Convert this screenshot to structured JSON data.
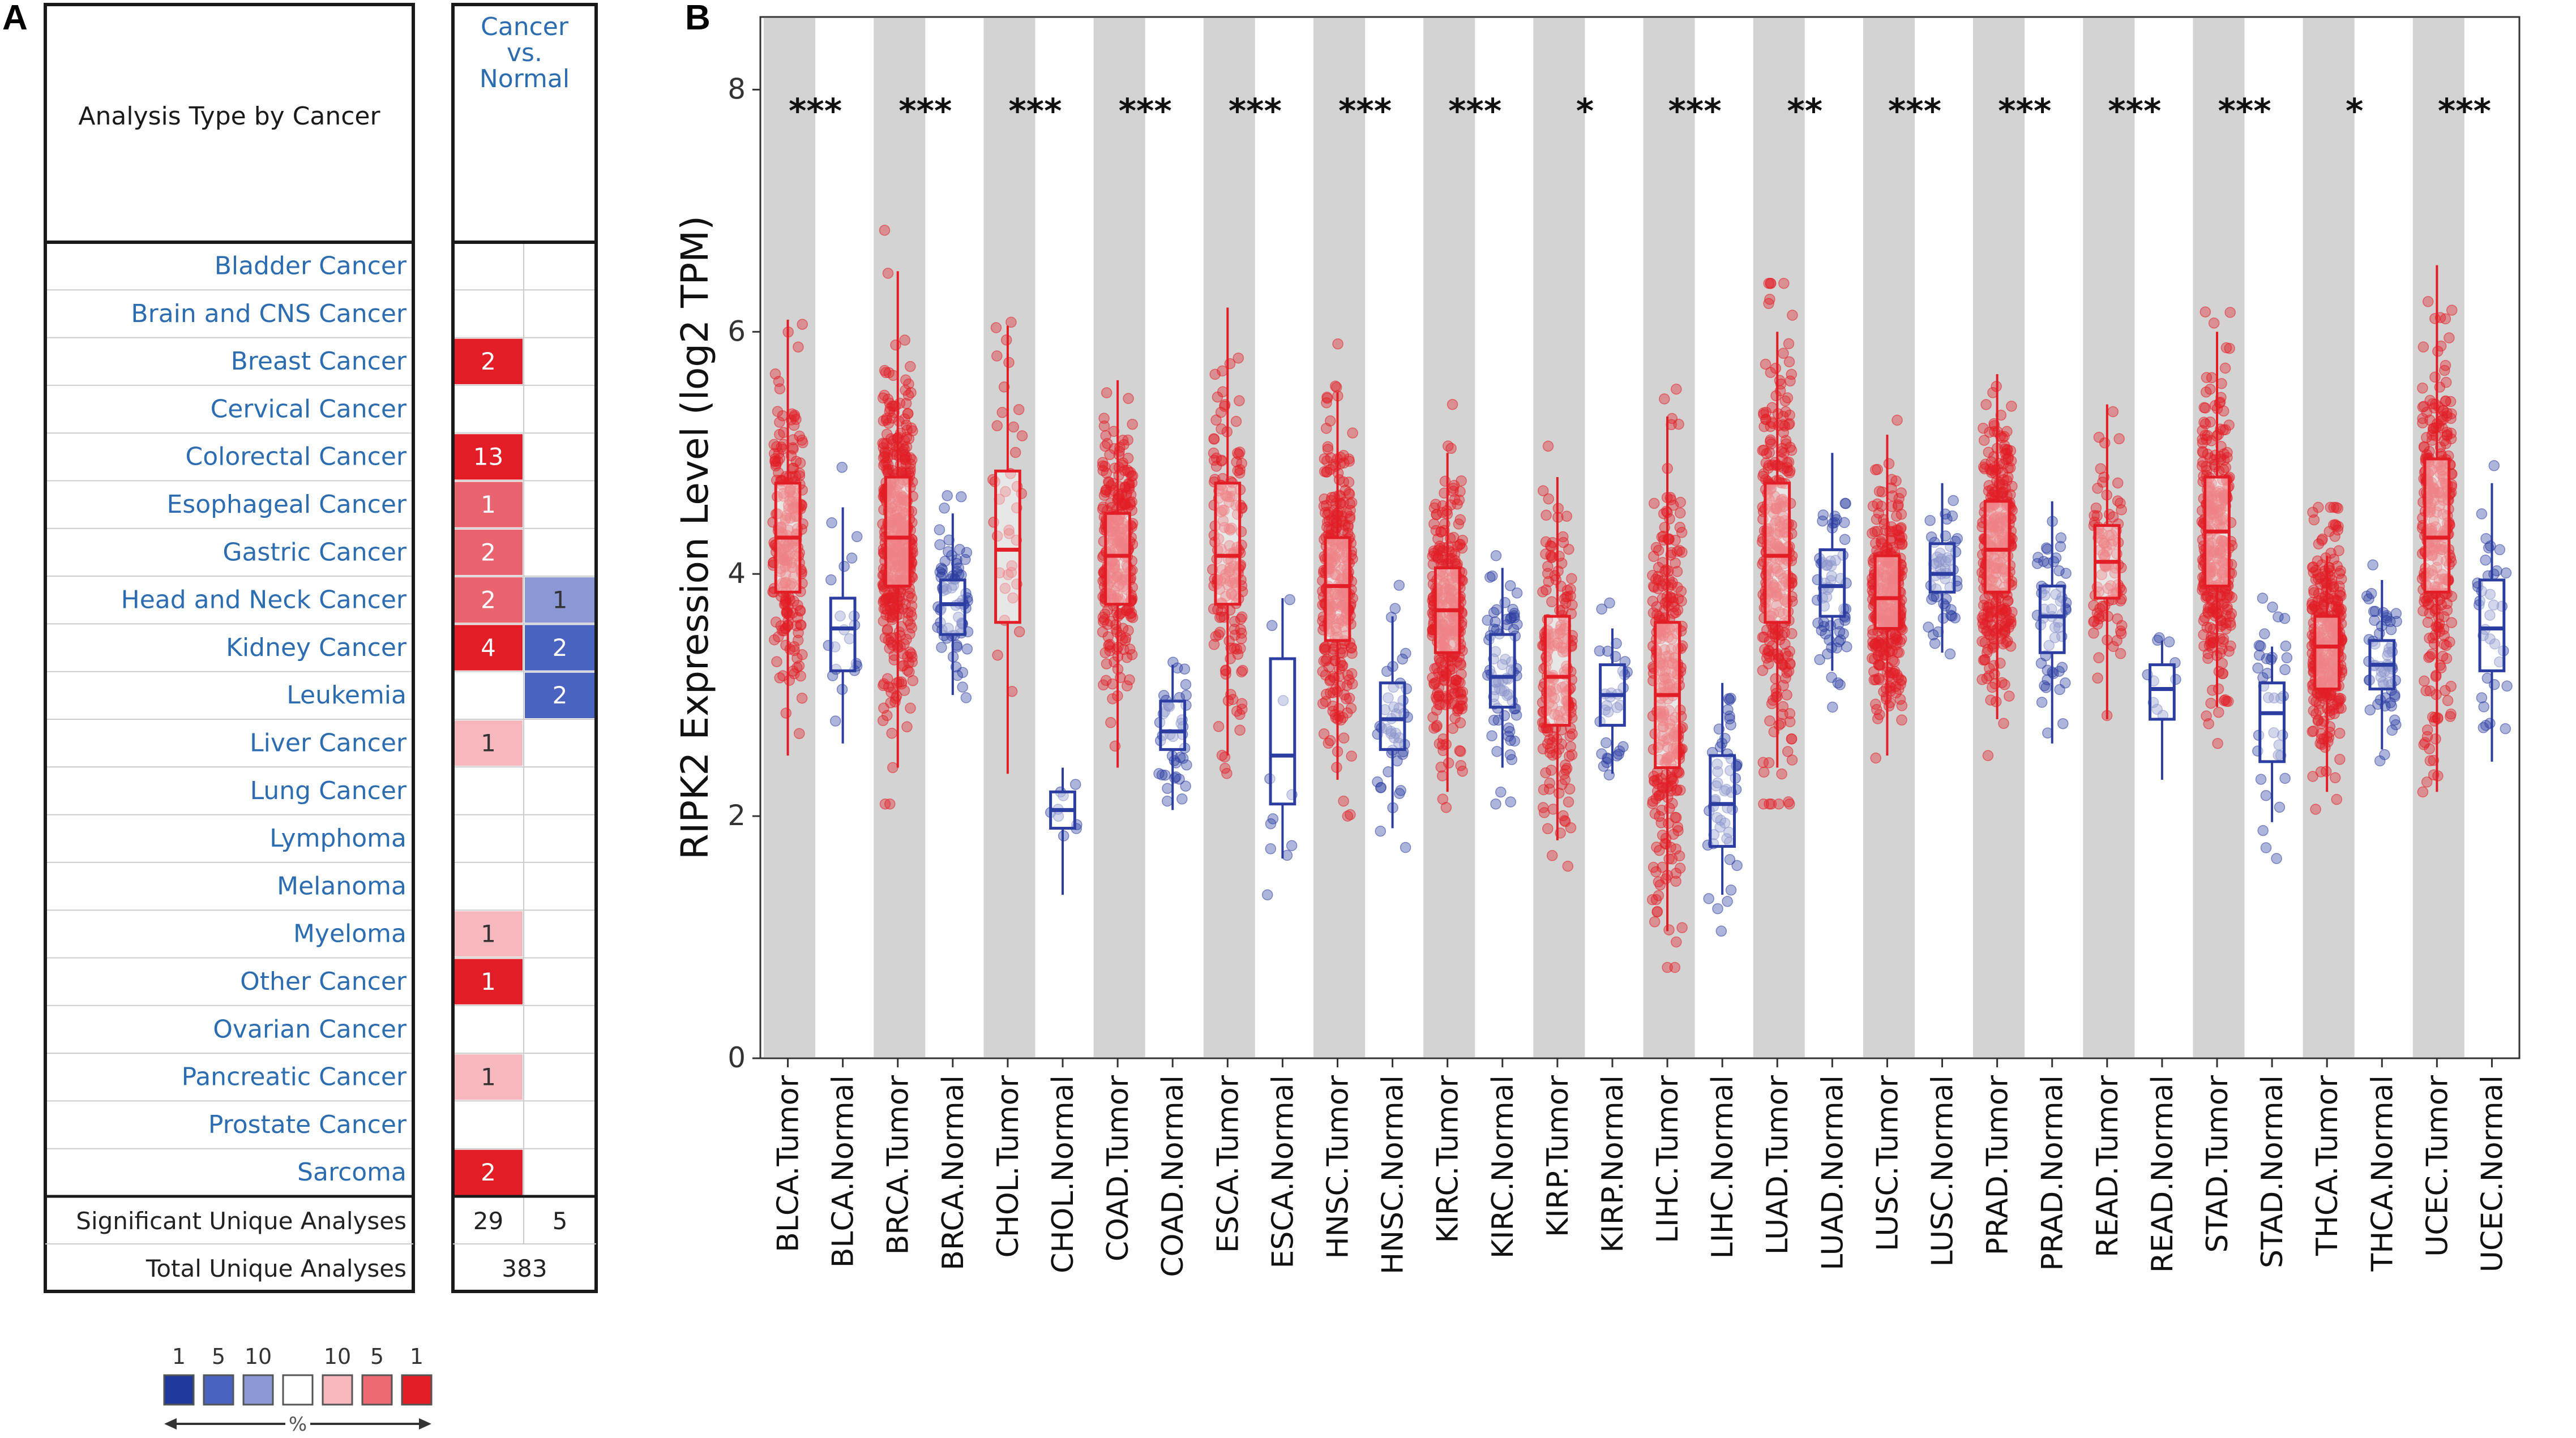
{
  "panel_a": {
    "label": "A",
    "header_left": "Analysis Type by Cancer",
    "header_right": [
      "Cancer",
      "vs.",
      "Normal"
    ],
    "rows": [
      {
        "name": "Bladder Cancer",
        "up": "",
        "down": "",
        "up_level": 0,
        "down_level": 0
      },
      {
        "name": "Brain and CNS Cancer",
        "up": "",
        "down": "",
        "up_level": 0,
        "down_level": 0
      },
      {
        "name": "Breast Cancer",
        "up": "2",
        "down": "",
        "up_level": 3,
        "down_level": 0
      },
      {
        "name": "Cervical Cancer",
        "up": "",
        "down": "",
        "up_level": 0,
        "down_level": 0
      },
      {
        "name": "Colorectal Cancer",
        "up": "13",
        "down": "",
        "up_level": 3,
        "down_level": 0
      },
      {
        "name": "Esophageal Cancer",
        "up": "1",
        "down": "",
        "up_level": 2,
        "down_level": 0
      },
      {
        "name": "Gastric Cancer",
        "up": "2",
        "down": "",
        "up_level": 2,
        "down_level": 0
      },
      {
        "name": "Head and Neck Cancer",
        "up": "2",
        "down": "1",
        "up_level": 2,
        "down_level": 1
      },
      {
        "name": "Kidney Cancer",
        "up": "4",
        "down": "2",
        "up_level": 3,
        "down_level": 2
      },
      {
        "name": "Leukemia",
        "up": "",
        "down": "2",
        "up_level": 0,
        "down_level": 2
      },
      {
        "name": "Liver Cancer",
        "up": "1",
        "down": "",
        "up_level": 1,
        "down_level": 0
      },
      {
        "name": "Lung Cancer",
        "up": "",
        "down": "",
        "up_level": 0,
        "down_level": 0
      },
      {
        "name": "Lymphoma",
        "up": "",
        "down": "",
        "up_level": 0,
        "down_level": 0
      },
      {
        "name": "Melanoma",
        "up": "",
        "down": "",
        "up_level": 0,
        "down_level": 0
      },
      {
        "name": "Myeloma",
        "up": "1",
        "down": "",
        "up_level": 1,
        "down_level": 0
      },
      {
        "name": "Other Cancer",
        "up": "1",
        "down": "",
        "up_level": 3,
        "down_level": 0
      },
      {
        "name": "Ovarian Cancer",
        "up": "",
        "down": "",
        "up_level": 0,
        "down_level": 0
      },
      {
        "name": "Pancreatic Cancer",
        "up": "1",
        "down": "",
        "up_level": 1,
        "down_level": 0
      },
      {
        "name": "Prostate Cancer",
        "up": "",
        "down": "",
        "up_level": 0,
        "down_level": 0
      },
      {
        "name": "Sarcoma",
        "up": "2",
        "down": "",
        "up_level": 3,
        "down_level": 0
      }
    ],
    "sig_label": "Significant Unique Analyses",
    "sig_up": "29",
    "sig_down": "5",
    "total_label": "Total Unique Analyses",
    "total": "383",
    "legend": {
      "numbers": [
        "1",
        "5",
        "10",
        "10",
        "5",
        "1"
      ],
      "percent": "%",
      "colors": [
        "#1f3a9a",
        "#4a62c0",
        "#8c97d6",
        "#ffffff",
        "#f6b8bd",
        "#ec6a72",
        "#e31d25"
      ]
    },
    "colors": {
      "up": [
        "#ffffff",
        "#f6b8bd",
        "#ea6470",
        "#e31d25"
      ],
      "down": [
        "#ffffff",
        "#8c97d6",
        "#4a62c0",
        "#1f3a9a"
      ],
      "link": "#2c6cb0"
    }
  },
  "panel_b": {
    "label": "B",
    "colors": {
      "tumor": "#e31d25",
      "normal": "#2b3da0",
      "band": "#d3d3d3"
    }
  },
  "chart_data": {
    "type": "box",
    "ylabel": "RIPK2 Expression Level (log2 TPM)",
    "ylim": [
      0,
      8.6
    ],
    "yticks": [
      0,
      2,
      4,
      6,
      8
    ],
    "cancers": [
      "BLCA",
      "BRCA",
      "CHOL",
      "COAD",
      "ESCA",
      "HNSC",
      "KIRC",
      "KIRP",
      "LIHC",
      "LUAD",
      "LUSC",
      "PRAD",
      "READ",
      "STAD",
      "THCA",
      "UCEC"
    ],
    "significance": [
      "***",
      "***",
      "***",
      "***",
      "***",
      "***",
      "***",
      "*",
      "***",
      "**",
      "***",
      "***",
      "***",
      "***",
      "*",
      "***"
    ],
    "groups": [
      {
        "label": "BLCA.Tumor",
        "type": "tumor",
        "q1": 3.85,
        "median": 4.3,
        "q3": 4.75,
        "wlo": 2.5,
        "whi": 6.1,
        "n": 220
      },
      {
        "label": "BLCA.Normal",
        "type": "normal",
        "q1": 3.2,
        "median": 3.55,
        "q3": 3.8,
        "wlo": 2.6,
        "whi": 4.55,
        "n": 20
      },
      {
        "label": "BRCA.Tumor",
        "type": "tumor",
        "q1": 3.9,
        "median": 4.3,
        "q3": 4.8,
        "wlo": 2.4,
        "whi": 6.5,
        "n": 420
      },
      {
        "label": "BRCA.Normal",
        "type": "normal",
        "q1": 3.5,
        "median": 3.75,
        "q3": 3.95,
        "wlo": 3.0,
        "whi": 4.5,
        "n": 70
      },
      {
        "label": "CHOL.Tumor",
        "type": "tumor",
        "q1": 3.6,
        "median": 4.2,
        "q3": 4.85,
        "wlo": 2.35,
        "whi": 6.05,
        "n": 36
      },
      {
        "label": "CHOL.Normal",
        "type": "normal",
        "q1": 1.9,
        "median": 2.05,
        "q3": 2.2,
        "wlo": 1.35,
        "whi": 2.4,
        "n": 9
      },
      {
        "label": "COAD.Tumor",
        "type": "tumor",
        "q1": 3.75,
        "median": 4.15,
        "q3": 4.5,
        "wlo": 2.4,
        "whi": 5.6,
        "n": 280
      },
      {
        "label": "COAD.Normal",
        "type": "normal",
        "q1": 2.55,
        "median": 2.7,
        "q3": 2.95,
        "wlo": 2.05,
        "whi": 3.25,
        "n": 40
      },
      {
        "label": "ESCA.Tumor",
        "type": "tumor",
        "q1": 3.75,
        "median": 4.15,
        "q3": 4.75,
        "wlo": 2.5,
        "whi": 6.2,
        "n": 160
      },
      {
        "label": "ESCA.Normal",
        "type": "normal",
        "q1": 2.1,
        "median": 2.5,
        "q3": 3.3,
        "wlo": 1.65,
        "whi": 3.8,
        "n": 11
      },
      {
        "label": "HNSC.Tumor",
        "type": "tumor",
        "q1": 3.45,
        "median": 3.9,
        "q3": 4.3,
        "wlo": 2.3,
        "whi": 5.5,
        "n": 300
      },
      {
        "label": "HNSC.Normal",
        "type": "normal",
        "q1": 2.55,
        "median": 2.8,
        "q3": 3.1,
        "wlo": 1.9,
        "whi": 3.65,
        "n": 44
      },
      {
        "label": "KIRC.Tumor",
        "type": "tumor",
        "q1": 3.35,
        "median": 3.7,
        "q3": 4.05,
        "wlo": 2.2,
        "whi": 5.0,
        "n": 300
      },
      {
        "label": "KIRC.Normal",
        "type": "normal",
        "q1": 2.9,
        "median": 3.15,
        "q3": 3.5,
        "wlo": 2.4,
        "whi": 4.05,
        "n": 72
      },
      {
        "label": "KIRP.Tumor",
        "type": "tumor",
        "q1": 2.75,
        "median": 3.15,
        "q3": 3.65,
        "wlo": 1.8,
        "whi": 4.8,
        "n": 190
      },
      {
        "label": "KIRP.Normal",
        "type": "normal",
        "q1": 2.75,
        "median": 3.0,
        "q3": 3.25,
        "wlo": 2.35,
        "whi": 3.55,
        "n": 32
      },
      {
        "label": "LIHC.Tumor",
        "type": "tumor",
        "q1": 2.4,
        "median": 3.0,
        "q3": 3.6,
        "wlo": 1.05,
        "whi": 5.3,
        "n": 300
      },
      {
        "label": "LIHC.Normal",
        "type": "normal",
        "q1": 1.75,
        "median": 2.1,
        "q3": 2.5,
        "wlo": 1.35,
        "whi": 3.1,
        "n": 50
      },
      {
        "label": "LUAD.Tumor",
        "type": "tumor",
        "q1": 3.6,
        "median": 4.15,
        "q3": 4.75,
        "wlo": 2.4,
        "whi": 6.0,
        "n": 300
      },
      {
        "label": "LUAD.Normal",
        "type": "normal",
        "q1": 3.65,
        "median": 3.9,
        "q3": 4.2,
        "wlo": 3.2,
        "whi": 5.0,
        "n": 59
      },
      {
        "label": "LUSC.Tumor",
        "type": "tumor",
        "q1": 3.55,
        "median": 3.8,
        "q3": 4.15,
        "wlo": 2.5,
        "whi": 5.15,
        "n": 300
      },
      {
        "label": "LUSC.Normal",
        "type": "normal",
        "q1": 3.85,
        "median": 4.0,
        "q3": 4.25,
        "wlo": 3.35,
        "whi": 4.75,
        "n": 49
      },
      {
        "label": "PRAD.Tumor",
        "type": "tumor",
        "q1": 3.85,
        "median": 4.2,
        "q3": 4.6,
        "wlo": 2.8,
        "whi": 5.65,
        "n": 300
      },
      {
        "label": "PRAD.Normal",
        "type": "normal",
        "q1": 3.35,
        "median": 3.65,
        "q3": 3.9,
        "wlo": 2.6,
        "whi": 4.6,
        "n": 52
      },
      {
        "label": "READ.Tumor",
        "type": "tumor",
        "q1": 3.8,
        "median": 4.1,
        "q3": 4.4,
        "wlo": 2.8,
        "whi": 5.4,
        "n": 92
      },
      {
        "label": "READ.Normal",
        "type": "normal",
        "q1": 2.8,
        "median": 3.05,
        "q3": 3.25,
        "wlo": 2.3,
        "whi": 3.45,
        "n": 10
      },
      {
        "label": "STAD.Tumor",
        "type": "tumor",
        "q1": 3.9,
        "median": 4.35,
        "q3": 4.8,
        "wlo": 2.9,
        "whi": 6.0,
        "n": 300
      },
      {
        "label": "STAD.Normal",
        "type": "normal",
        "q1": 2.45,
        "median": 2.85,
        "q3": 3.1,
        "wlo": 1.95,
        "whi": 3.4,
        "n": 36
      },
      {
        "label": "THCA.Tumor",
        "type": "tumor",
        "q1": 3.05,
        "median": 3.4,
        "q3": 3.65,
        "wlo": 2.2,
        "whi": 4.15,
        "n": 300
      },
      {
        "label": "THCA.Normal",
        "type": "normal",
        "q1": 3.05,
        "median": 3.25,
        "q3": 3.45,
        "wlo": 2.55,
        "whi": 3.95,
        "n": 59
      },
      {
        "label": "UCEC.Tumor",
        "type": "tumor",
        "q1": 3.85,
        "median": 4.3,
        "q3": 4.95,
        "wlo": 2.2,
        "whi": 6.55,
        "n": 300
      },
      {
        "label": "UCEC.Normal",
        "type": "normal",
        "q1": 3.2,
        "median": 3.55,
        "q3": 3.95,
        "wlo": 2.45,
        "whi": 4.75,
        "n": 35
      }
    ]
  }
}
